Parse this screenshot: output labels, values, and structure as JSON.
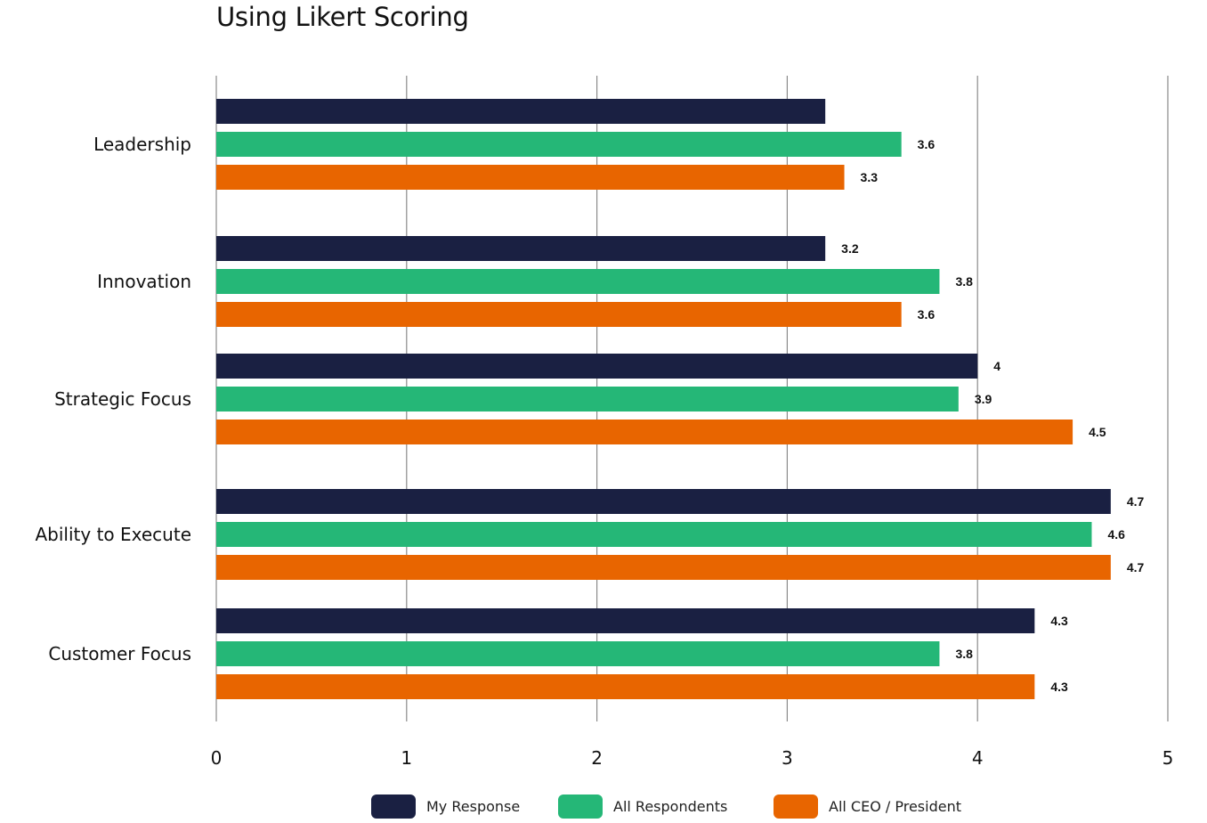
{
  "chart_data": {
    "type": "bar",
    "orientation": "horizontal",
    "title": "Using Likert Scoring",
    "categories": [
      "Leadership",
      "Innovation",
      "Strategic Focus",
      "Ability to Execute",
      "Customer Focus"
    ],
    "series": [
      {
        "name": "My Response",
        "color": "#1a2042",
        "values": [
          3.2,
          3.2,
          4.0,
          4.7,
          4.3
        ],
        "labels": [
          "",
          "3.2",
          "4",
          "4.7",
          "4.3"
        ]
      },
      {
        "name": "All Respondents",
        "color": "#25b777",
        "values": [
          3.6,
          3.8,
          3.9,
          4.6,
          3.8
        ],
        "labels": [
          "3.6",
          "3.8",
          "3.9",
          "4.6",
          "3.8"
        ]
      },
      {
        "name": "All CEO / President",
        "color": "#e86500",
        "values": [
          3.3,
          3.6,
          4.5,
          4.7,
          4.3
        ],
        "labels": [
          "3.3",
          "3.6",
          "4.5",
          "4.7",
          "4.3"
        ]
      }
    ],
    "xlim": [
      0,
      5
    ],
    "xticks": [
      "0",
      "1",
      "2",
      "3",
      "4",
      "5"
    ],
    "grid": "vertical",
    "legend": "bottom"
  }
}
